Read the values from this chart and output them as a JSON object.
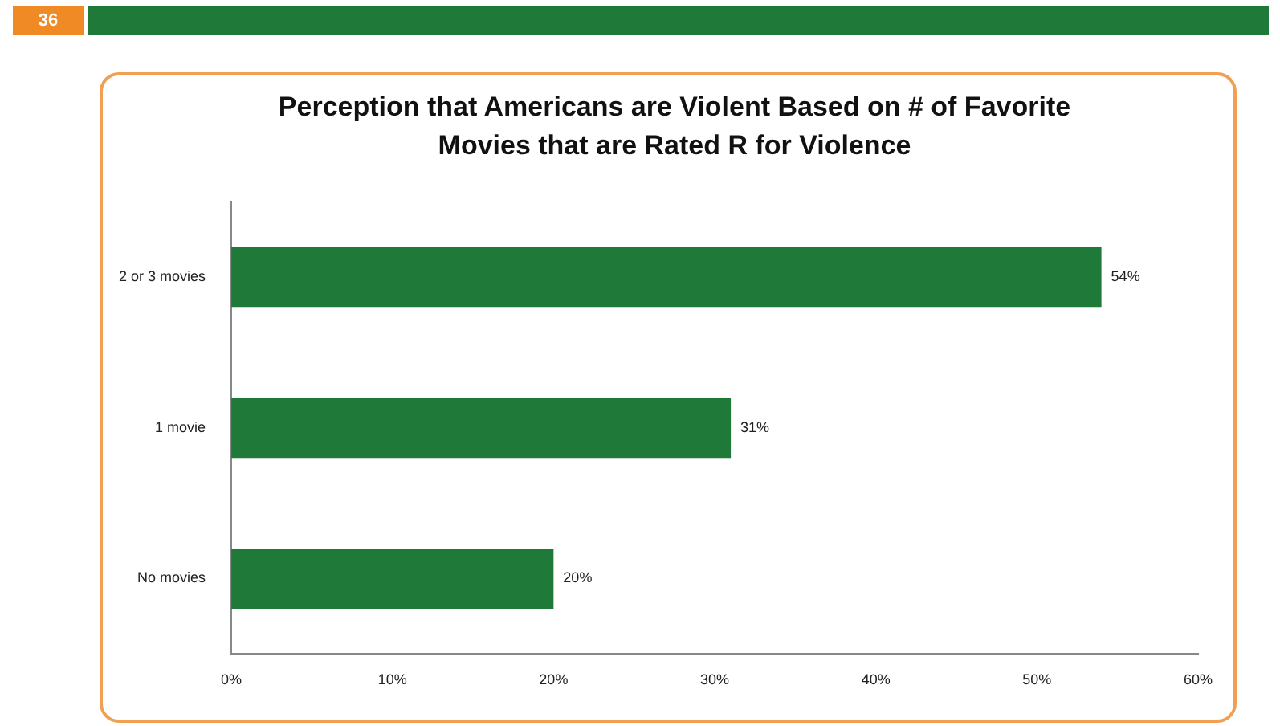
{
  "chart_data": {
    "type": "bar",
    "orientation": "horizontal",
    "title": "Perception that Americans are Violent Based on # of Favorite Movies that are Rated R for Violence",
    "annotations": [
      "36"
    ],
    "categories": [
      "2 or 3 movies",
      "1 movie",
      "No movies"
    ],
    "values": [
      54,
      31,
      20
    ],
    "value_labels": [
      "54%",
      "31%",
      "20%"
    ],
    "color": "#1f7a3a",
    "xlim": [
      0,
      60
    ],
    "xticks": [
      {
        "value": 0,
        "label": "0%"
      },
      {
        "value": 10,
        "label": "10%"
      },
      {
        "value": 20,
        "label": "20%"
      },
      {
        "value": 30,
        "label": "30%"
      },
      {
        "value": 40,
        "label": "40%"
      },
      {
        "value": 50,
        "label": "50%"
      },
      {
        "value": 60,
        "label": "60%"
      }
    ],
    "grid": false,
    "legend": false
  }
}
